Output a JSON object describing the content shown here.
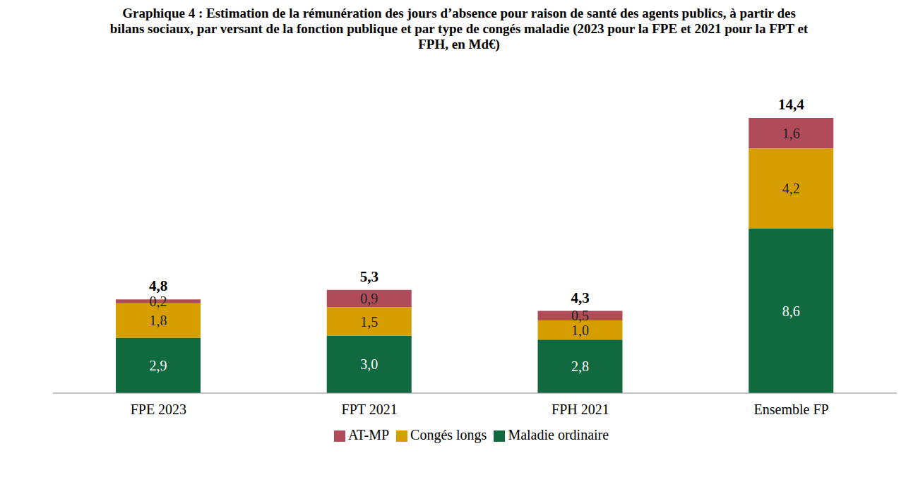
{
  "chart_data": {
    "type": "bar",
    "title": "Graphique 4 : Estimation de la rémunération des jours d’absence pour raison de santé des agents publics, à partir des bilans sociaux, par versant de la fonction publique et par type de congés maladie (2023 pour la FPE et 2021 pour la FPT et FPH, en Md€)",
    "categories": [
      "FPE 2023",
      "FPT 2021",
      "FPH 2021",
      "Ensemble FP"
    ],
    "stacked": true,
    "data_labels": true,
    "tick_labels": "x",
    "grid": false,
    "legend": "bottom",
    "series": [
      {
        "name": "Maladie ordinaire",
        "color": "#11693f",
        "values": [
          2.9,
          3.0,
          2.8,
          8.6
        ],
        "value_labels": [
          "2,9",
          "3,0",
          "2,8",
          "8,6"
        ]
      },
      {
        "name": "Congés longs",
        "color": "#d69e00",
        "values": [
          1.8,
          1.5,
          1.0,
          4.2
        ],
        "value_labels": [
          "1,8",
          "1,5",
          "1,0",
          "4,2"
        ]
      },
      {
        "name": "AT-MP",
        "color": "#b04c5a",
        "values": [
          0.2,
          0.9,
          0.5,
          1.6
        ],
        "value_labels": [
          "0,2",
          "0,9",
          "0,5",
          "1,6"
        ]
      }
    ],
    "totals": [
      4.8,
      5.3,
      4.3,
      14.4
    ],
    "total_labels": [
      "4,8",
      "5,3",
      "4,3",
      "14,4"
    ]
  }
}
